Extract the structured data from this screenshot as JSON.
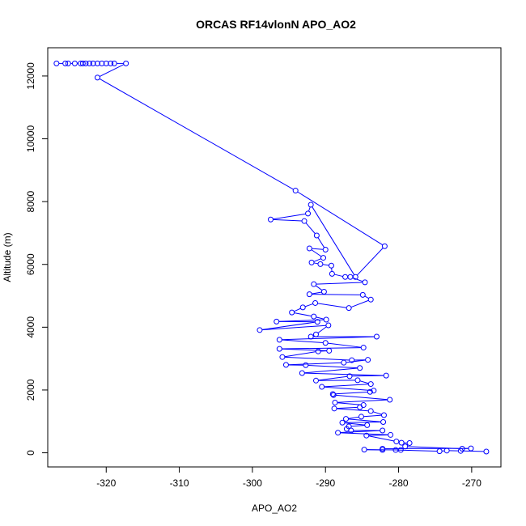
{
  "chart_data": {
    "type": "line",
    "title": "ORCAS RF14vlonN APO_AO2",
    "xlabel": "APO_AO2",
    "ylabel": "Altitude (m)",
    "xlim": [
      -328,
      -266
    ],
    "ylim": [
      -450,
      12900
    ],
    "xticks": [
      -320,
      -310,
      -300,
      -290,
      -280,
      -270
    ],
    "yticks": [
      0,
      2000,
      4000,
      6000,
      8000,
      10000,
      12000
    ],
    "grid": false,
    "legend": "none",
    "series": [
      {
        "color": "#0000ff",
        "marker": "open-circle",
        "points": [
          [
            -326.8,
            12400
          ],
          [
            -325.6,
            12400
          ],
          [
            -325.2,
            12400
          ],
          [
            -324.3,
            12400
          ],
          [
            -323.5,
            12400
          ],
          [
            -323.2,
            12400
          ],
          [
            -322.8,
            12400
          ],
          [
            -322.3,
            12400
          ],
          [
            -321.8,
            12400
          ],
          [
            -321.2,
            12400
          ],
          [
            -320.6,
            12400
          ],
          [
            -320.0,
            12400
          ],
          [
            -319.4,
            12400
          ],
          [
            -318.9,
            12400
          ],
          [
            -317.3,
            12400
          ],
          [
            -321.2,
            11950
          ],
          [
            -294.1,
            8350
          ],
          [
            -281.9,
            6580
          ],
          [
            -285.9,
            5600
          ],
          [
            -292.0,
            7900
          ],
          [
            -292.4,
            7620
          ],
          [
            -297.5,
            7430
          ],
          [
            -292.9,
            7380
          ],
          [
            -291.2,
            6920
          ],
          [
            -290.0,
            6470
          ],
          [
            -292.2,
            6510
          ],
          [
            -290.3,
            6210
          ],
          [
            -291.9,
            6060
          ],
          [
            -290.7,
            6010
          ],
          [
            -289.2,
            5960
          ],
          [
            -289.1,
            5700
          ],
          [
            -287.3,
            5600
          ],
          [
            -286.6,
            5600
          ],
          [
            -284.6,
            5430
          ],
          [
            -291.6,
            5370
          ],
          [
            -290.2,
            5130
          ],
          [
            -292.2,
            5050
          ],
          [
            -284.9,
            5030
          ],
          [
            -283.8,
            4880
          ],
          [
            -286.8,
            4610
          ],
          [
            -291.4,
            4770
          ],
          [
            -293.1,
            4630
          ],
          [
            -294.6,
            4470
          ],
          [
            -291.6,
            4340
          ],
          [
            -289.9,
            4240
          ],
          [
            -296.7,
            4180
          ],
          [
            -291.1,
            4170
          ],
          [
            -299.0,
            3910
          ],
          [
            -289.6,
            4060
          ],
          [
            -291.3,
            3770
          ],
          [
            -292.0,
            3700
          ],
          [
            -283.0,
            3700
          ],
          [
            -296.3,
            3600
          ],
          [
            -290.0,
            3500
          ],
          [
            -284.8,
            3350
          ],
          [
            -296.3,
            3310
          ],
          [
            -289.5,
            3250
          ],
          [
            -291.0,
            3230
          ],
          [
            -295.9,
            3050
          ],
          [
            -286.4,
            2950
          ],
          [
            -284.2,
            2960
          ],
          [
            -287.5,
            2870
          ],
          [
            -295.4,
            2800
          ],
          [
            -292.7,
            2790
          ],
          [
            -285.3,
            2700
          ],
          [
            -293.2,
            2540
          ],
          [
            -281.7,
            2460
          ],
          [
            -286.7,
            2440
          ],
          [
            -291.3,
            2300
          ],
          [
            -285.6,
            2310
          ],
          [
            -283.8,
            2190
          ],
          [
            -290.5,
            2100
          ],
          [
            -283.4,
            1980
          ],
          [
            -283.9,
            1940
          ],
          [
            -289.0,
            1870
          ],
          [
            -288.9,
            1840
          ],
          [
            -281.2,
            1690
          ],
          [
            -288.7,
            1600
          ],
          [
            -284.8,
            1520
          ],
          [
            -285.3,
            1450
          ],
          [
            -288.8,
            1410
          ],
          [
            -283.8,
            1330
          ],
          [
            -282.0,
            1200
          ],
          [
            -285.1,
            1150
          ],
          [
            -287.2,
            1080
          ],
          [
            -282.1,
            980
          ],
          [
            -287.7,
            960
          ],
          [
            -284.3,
            880
          ],
          [
            -286.8,
            840
          ],
          [
            -287.1,
            760
          ],
          [
            -286.5,
            710
          ],
          [
            -282.2,
            710
          ],
          [
            -288.3,
            640
          ],
          [
            -281.1,
            570
          ],
          [
            -284.4,
            550
          ],
          [
            -280.3,
            360
          ],
          [
            -279.6,
            320
          ],
          [
            -278.5,
            310
          ],
          [
            -279.1,
            200
          ],
          [
            -271.3,
            130
          ],
          [
            -270.1,
            140
          ],
          [
            -282.2,
            130
          ],
          [
            -282.2,
            90
          ],
          [
            -284.7,
            100
          ],
          [
            -279.7,
            90
          ],
          [
            -280.4,
            90
          ],
          [
            -274.4,
            50
          ],
          [
            -273.4,
            70
          ],
          [
            -271.5,
            60
          ],
          [
            -268.0,
            40
          ]
        ]
      }
    ]
  }
}
